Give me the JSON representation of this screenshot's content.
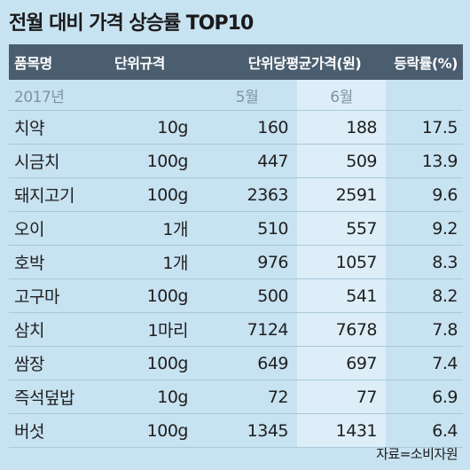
{
  "title": "전월 대비 가격 상승률 TOP10",
  "header": {
    "item": "품목명",
    "unit": "단위규격",
    "avg_price": "단위당평균가격(원)",
    "rate": "등락률(%)"
  },
  "subheader": {
    "year": "2017년",
    "may": "5월",
    "june": "6월"
  },
  "rows": [
    {
      "item": "치약",
      "unit": "10g",
      "may": "160",
      "june": "188",
      "rate": "17.5"
    },
    {
      "item": "시금치",
      "unit": "100g",
      "may": "447",
      "june": "509",
      "rate": "13.9"
    },
    {
      "item": "돼지고기",
      "unit": "100g",
      "may": "2363",
      "june": "2591",
      "rate": "9.6"
    },
    {
      "item": "오이",
      "unit": "1개",
      "may": "510",
      "june": "557",
      "rate": "9.2"
    },
    {
      "item": "호박",
      "unit": "1개",
      "may": "976",
      "june": "1057",
      "rate": "8.3"
    },
    {
      "item": "고구마",
      "unit": "100g",
      "may": "500",
      "june": "541",
      "rate": "8.2"
    },
    {
      "item": "삼치",
      "unit": "1마리",
      "may": "7124",
      "june": "7678",
      "rate": "7.8"
    },
    {
      "item": "쌈장",
      "unit": "100g",
      "may": "649",
      "june": "697",
      "rate": "7.4"
    },
    {
      "item": "즉석덮밥",
      "unit": "10g",
      "may": "72",
      "june": "77",
      "rate": "6.9"
    },
    {
      "item": "버섯",
      "unit": "100g",
      "may": "1345",
      "june": "1431",
      "rate": "6.4"
    }
  ],
  "source": "자료=소비자원"
}
